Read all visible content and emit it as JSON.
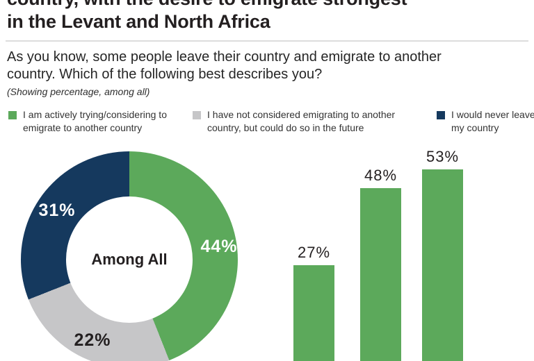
{
  "header": {
    "title_line1": "country, with the desire to emigrate strongest",
    "title_line2": "in the Levant and North Africa",
    "subtitle": "As you know, some people leave their country and emigrate to another country. Which of the following best describes you?",
    "caption": "(Showing percentage, among all)"
  },
  "legend": {
    "items": [
      {
        "label": "I am actively trying/considering to emigrate to another country",
        "color": "#5ca95b"
      },
      {
        "label": "I have not considered emigrating to another country, but could do so in the future",
        "color": "#c6c6c8"
      },
      {
        "label": "I would never leave my country",
        "color": "#15395e"
      }
    ]
  },
  "chart_data": [
    {
      "type": "pie",
      "subtype": "donut",
      "center_label": "Among All",
      "start_angle_deg": 0,
      "direction": "clockwise",
      "segments": [
        {
          "name": "I am actively trying/considering to emigrate to another country",
          "value": 44,
          "label": "44%",
          "color": "#5ca95b",
          "label_color": "#ffffff"
        },
        {
          "name": "I have not considered emigrating to another country, but could do so in the future",
          "value": 22,
          "label": "22%",
          "color": "#c6c6c8",
          "label_color": "#231f20"
        },
        {
          "name": "I would never leave my country",
          "value": 31,
          "label": "31%",
          "color": "#15395e",
          "label_color": "#ffffff"
        }
      ]
    },
    {
      "type": "bar",
      "series_name": "I am actively trying/considering to emigrate to another country",
      "values": [
        27,
        48,
        53
      ],
      "labels": [
        "27%",
        "48%",
        "53%"
      ],
      "color": "#5ca95b",
      "ylim": [
        0,
        100
      ],
      "grid": false,
      "note_layout": "bars cropped at image bottom edge"
    }
  ]
}
